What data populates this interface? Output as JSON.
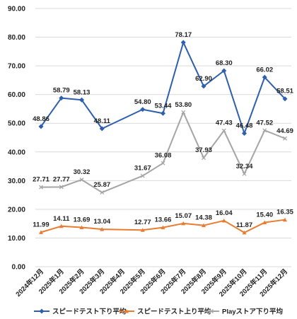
{
  "chart_data": {
    "type": "line",
    "x": [
      "2024年12月",
      "2025年1月",
      "2025年2月",
      "2025年3月",
      "2025年4月",
      "2025年5月",
      "2025年6月",
      "2025年7月",
      "2025年8月",
      "2025年9月",
      "2025年10月",
      "2025年11月",
      "2025年12月"
    ],
    "ylim": [
      0,
      90
    ],
    "yticks": [
      "0.00",
      "10.00",
      "20.00",
      "30.00",
      "40.00",
      "50.00",
      "60.00",
      "70.00",
      "80.00",
      "90.00"
    ],
    "grid": true,
    "legend": "bottom",
    "series": [
      {
        "name": "スピードテスト下り平均",
        "color": "#2E5FAD",
        "marker": "diamond",
        "values": [
          48.86,
          58.79,
          58.13,
          48.11,
          null,
          54.8,
          53.44,
          78.17,
          62.9,
          68.3,
          46.48,
          66.02,
          58.51
        ],
        "labels": [
          "48.86",
          "58.79",
          "58.13",
          "48.11",
          "",
          "54.80",
          "53.44",
          "78.17",
          "62.90",
          "68.30",
          "46.48",
          "66.02",
          "58.51"
        ]
      },
      {
        "name": "スピードテスト上り平均",
        "color": "#E97C30",
        "marker": "triangle",
        "values": [
          11.99,
          14.11,
          13.69,
          13.04,
          null,
          12.77,
          13.66,
          15.07,
          14.38,
          16.04,
          11.87,
          15.4,
          16.35
        ],
        "labels": [
          "11.99",
          "14.11",
          "13.69",
          "13.04",
          "",
          "12.77",
          "13.66",
          "15.07",
          "14.38",
          "16.04",
          "11.87",
          "15.40",
          "16.35"
        ]
      },
      {
        "name": "Playストア下り平均",
        "color": "#A5A5A5",
        "marker": "x",
        "values": [
          27.71,
          27.77,
          30.32,
          25.87,
          null,
          31.67,
          36.08,
          53.8,
          37.93,
          47.43,
          32.34,
          47.52,
          44.69
        ],
        "labels": [
          "27.71",
          "27.77",
          "30.32",
          "25.87",
          "",
          "31.67",
          "36.08",
          "53.80",
          "37.93",
          "47.43",
          "32.34",
          "47.52",
          "44.69"
        ]
      }
    ]
  }
}
